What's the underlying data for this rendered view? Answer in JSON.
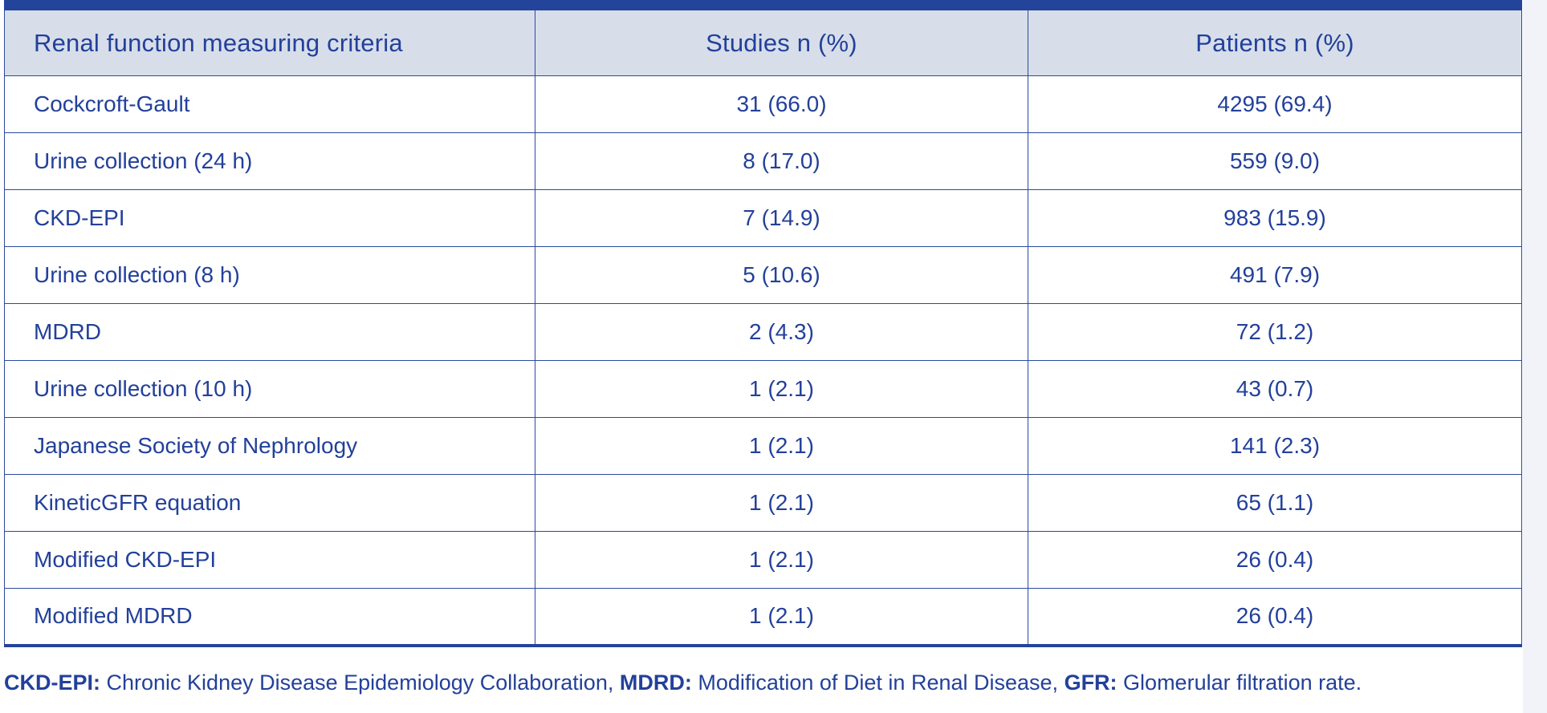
{
  "table": {
    "headers": [
      "Renal function measuring criteria",
      "Studies n (%)",
      "Patients n (%)"
    ],
    "rows": [
      [
        "Cockcroft-Gault",
        "31 (66.0)",
        "4295 (69.4)"
      ],
      [
        "Urine collection (24 h)",
        "8 (17.0)",
        "559 (9.0)"
      ],
      [
        "CKD-EPI",
        "7 (14.9)",
        "983 (15.9)"
      ],
      [
        "Urine collection (8 h)",
        "5 (10.6)",
        "491 (7.9)"
      ],
      [
        "MDRD",
        "2 (4.3)",
        "72 (1.2)"
      ],
      [
        "Urine collection (10 h)",
        "1 (2.1)",
        "43 (0.7)"
      ],
      [
        "Japanese Society of Nephrology",
        "1 (2.1)",
        "141 (2.3)"
      ],
      [
        "KineticGFR equation",
        "1 (2.1)",
        "65 (1.1)"
      ],
      [
        "Modified CKD-EPI",
        "1 (2.1)",
        "26 (0.4)"
      ],
      [
        "Modified MDRD",
        "1 (2.1)",
        "26 (0.4)"
      ]
    ]
  },
  "footnote": {
    "items": [
      {
        "abbr": "CKD-EPI:",
        "text": " Chronic Kidney Disease Epidemiology Collaboration, "
      },
      {
        "abbr": "MDRD:",
        "text": " Modification of Diet in Renal Disease, "
      },
      {
        "abbr": "GFR:",
        "text": " Glomerular filtration rate."
      }
    ]
  },
  "colors": {
    "text": "#23409a",
    "header_bg": "#d7deea",
    "rule": "#23449a"
  }
}
